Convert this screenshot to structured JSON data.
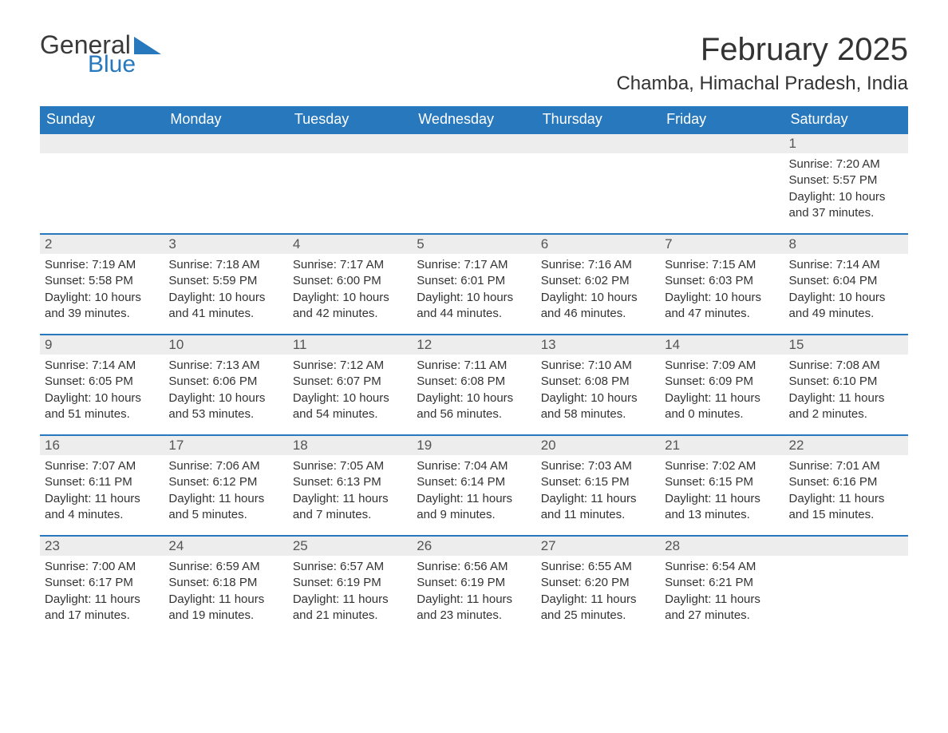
{
  "logo": {
    "text_general": "General",
    "text_blue": "Blue",
    "accent_color": "#2878bd"
  },
  "title": {
    "month": "February 2025",
    "location": "Chamba, Himachal Pradesh, India"
  },
  "colors": {
    "header_bg": "#2878bd",
    "header_text": "#ffffff",
    "daynum_bg": "#ededed",
    "daynum_border": "#2878bd",
    "body_bg": "#ffffff",
    "text": "#333333"
  },
  "weekdays": [
    "Sunday",
    "Monday",
    "Tuesday",
    "Wednesday",
    "Thursday",
    "Friday",
    "Saturday"
  ],
  "weeks": [
    [
      {
        "day": "",
        "sunrise": "",
        "sunset": "",
        "daylight": ""
      },
      {
        "day": "",
        "sunrise": "",
        "sunset": "",
        "daylight": ""
      },
      {
        "day": "",
        "sunrise": "",
        "sunset": "",
        "daylight": ""
      },
      {
        "day": "",
        "sunrise": "",
        "sunset": "",
        "daylight": ""
      },
      {
        "day": "",
        "sunrise": "",
        "sunset": "",
        "daylight": ""
      },
      {
        "day": "",
        "sunrise": "",
        "sunset": "",
        "daylight": ""
      },
      {
        "day": "1",
        "sunrise": "Sunrise: 7:20 AM",
        "sunset": "Sunset: 5:57 PM",
        "daylight": "Daylight: 10 hours and 37 minutes."
      }
    ],
    [
      {
        "day": "2",
        "sunrise": "Sunrise: 7:19 AM",
        "sunset": "Sunset: 5:58 PM",
        "daylight": "Daylight: 10 hours and 39 minutes."
      },
      {
        "day": "3",
        "sunrise": "Sunrise: 7:18 AM",
        "sunset": "Sunset: 5:59 PM",
        "daylight": "Daylight: 10 hours and 41 minutes."
      },
      {
        "day": "4",
        "sunrise": "Sunrise: 7:17 AM",
        "sunset": "Sunset: 6:00 PM",
        "daylight": "Daylight: 10 hours and 42 minutes."
      },
      {
        "day": "5",
        "sunrise": "Sunrise: 7:17 AM",
        "sunset": "Sunset: 6:01 PM",
        "daylight": "Daylight: 10 hours and 44 minutes."
      },
      {
        "day": "6",
        "sunrise": "Sunrise: 7:16 AM",
        "sunset": "Sunset: 6:02 PM",
        "daylight": "Daylight: 10 hours and 46 minutes."
      },
      {
        "day": "7",
        "sunrise": "Sunrise: 7:15 AM",
        "sunset": "Sunset: 6:03 PM",
        "daylight": "Daylight: 10 hours and 47 minutes."
      },
      {
        "day": "8",
        "sunrise": "Sunrise: 7:14 AM",
        "sunset": "Sunset: 6:04 PM",
        "daylight": "Daylight: 10 hours and 49 minutes."
      }
    ],
    [
      {
        "day": "9",
        "sunrise": "Sunrise: 7:14 AM",
        "sunset": "Sunset: 6:05 PM",
        "daylight": "Daylight: 10 hours and 51 minutes."
      },
      {
        "day": "10",
        "sunrise": "Sunrise: 7:13 AM",
        "sunset": "Sunset: 6:06 PM",
        "daylight": "Daylight: 10 hours and 53 minutes."
      },
      {
        "day": "11",
        "sunrise": "Sunrise: 7:12 AM",
        "sunset": "Sunset: 6:07 PM",
        "daylight": "Daylight: 10 hours and 54 minutes."
      },
      {
        "day": "12",
        "sunrise": "Sunrise: 7:11 AM",
        "sunset": "Sunset: 6:08 PM",
        "daylight": "Daylight: 10 hours and 56 minutes."
      },
      {
        "day": "13",
        "sunrise": "Sunrise: 7:10 AM",
        "sunset": "Sunset: 6:08 PM",
        "daylight": "Daylight: 10 hours and 58 minutes."
      },
      {
        "day": "14",
        "sunrise": "Sunrise: 7:09 AM",
        "sunset": "Sunset: 6:09 PM",
        "daylight": "Daylight: 11 hours and 0 minutes."
      },
      {
        "day": "15",
        "sunrise": "Sunrise: 7:08 AM",
        "sunset": "Sunset: 6:10 PM",
        "daylight": "Daylight: 11 hours and 2 minutes."
      }
    ],
    [
      {
        "day": "16",
        "sunrise": "Sunrise: 7:07 AM",
        "sunset": "Sunset: 6:11 PM",
        "daylight": "Daylight: 11 hours and 4 minutes."
      },
      {
        "day": "17",
        "sunrise": "Sunrise: 7:06 AM",
        "sunset": "Sunset: 6:12 PM",
        "daylight": "Daylight: 11 hours and 5 minutes."
      },
      {
        "day": "18",
        "sunrise": "Sunrise: 7:05 AM",
        "sunset": "Sunset: 6:13 PM",
        "daylight": "Daylight: 11 hours and 7 minutes."
      },
      {
        "day": "19",
        "sunrise": "Sunrise: 7:04 AM",
        "sunset": "Sunset: 6:14 PM",
        "daylight": "Daylight: 11 hours and 9 minutes."
      },
      {
        "day": "20",
        "sunrise": "Sunrise: 7:03 AM",
        "sunset": "Sunset: 6:15 PM",
        "daylight": "Daylight: 11 hours and 11 minutes."
      },
      {
        "day": "21",
        "sunrise": "Sunrise: 7:02 AM",
        "sunset": "Sunset: 6:15 PM",
        "daylight": "Daylight: 11 hours and 13 minutes."
      },
      {
        "day": "22",
        "sunrise": "Sunrise: 7:01 AM",
        "sunset": "Sunset: 6:16 PM",
        "daylight": "Daylight: 11 hours and 15 minutes."
      }
    ],
    [
      {
        "day": "23",
        "sunrise": "Sunrise: 7:00 AM",
        "sunset": "Sunset: 6:17 PM",
        "daylight": "Daylight: 11 hours and 17 minutes."
      },
      {
        "day": "24",
        "sunrise": "Sunrise: 6:59 AM",
        "sunset": "Sunset: 6:18 PM",
        "daylight": "Daylight: 11 hours and 19 minutes."
      },
      {
        "day": "25",
        "sunrise": "Sunrise: 6:57 AM",
        "sunset": "Sunset: 6:19 PM",
        "daylight": "Daylight: 11 hours and 21 minutes."
      },
      {
        "day": "26",
        "sunrise": "Sunrise: 6:56 AM",
        "sunset": "Sunset: 6:19 PM",
        "daylight": "Daylight: 11 hours and 23 minutes."
      },
      {
        "day": "27",
        "sunrise": "Sunrise: 6:55 AM",
        "sunset": "Sunset: 6:20 PM",
        "daylight": "Daylight: 11 hours and 25 minutes."
      },
      {
        "day": "28",
        "sunrise": "Sunrise: 6:54 AM",
        "sunset": "Sunset: 6:21 PM",
        "daylight": "Daylight: 11 hours and 27 minutes."
      },
      {
        "day": "",
        "sunrise": "",
        "sunset": "",
        "daylight": ""
      }
    ]
  ]
}
